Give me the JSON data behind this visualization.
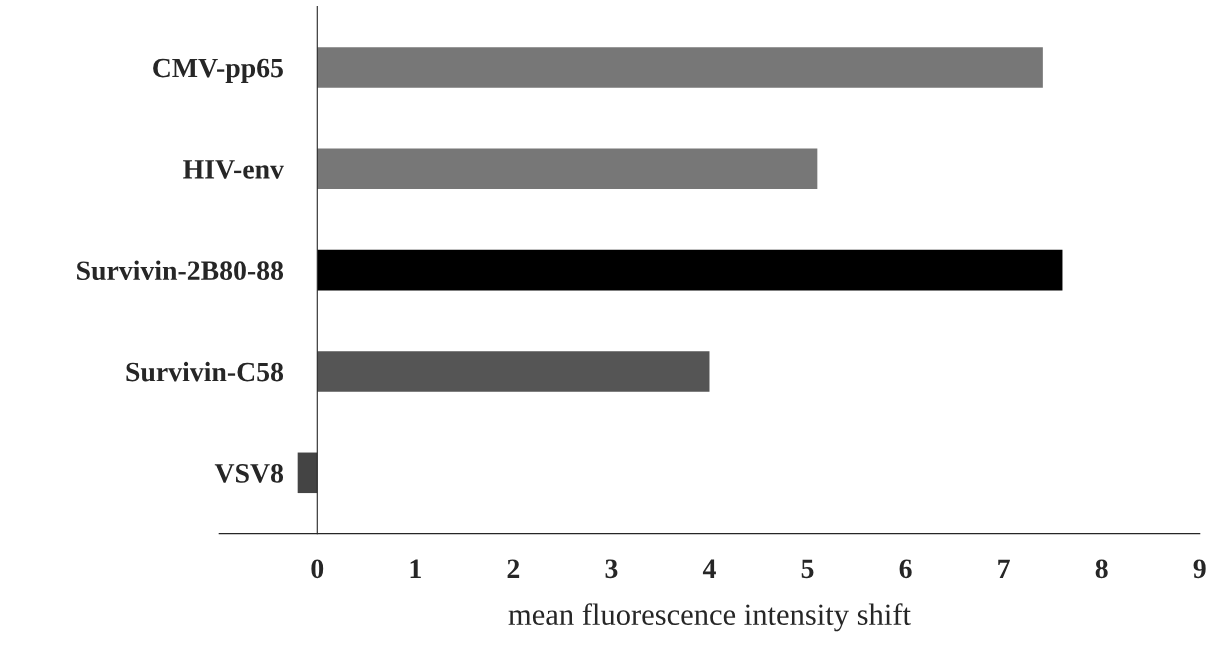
{
  "chart_data": {
    "type": "bar",
    "orientation": "horizontal",
    "categories": [
      "CMV-pp65",
      "HIV-env",
      "Survivin-2B80-88",
      "Survivin-C58",
      "VSV8"
    ],
    "values": [
      7.4,
      5.1,
      7.6,
      4.0,
      -0.2
    ],
    "colors": [
      "#777777",
      "#777777",
      "#000000",
      "#555555",
      "#444444"
    ],
    "xlim": [
      -1,
      9
    ],
    "xticks": [
      0,
      1,
      2,
      3,
      4,
      5,
      6,
      7,
      8,
      9
    ],
    "xlabel": "mean fluorescence intensity shift",
    "grid": false,
    "legend": false
  }
}
